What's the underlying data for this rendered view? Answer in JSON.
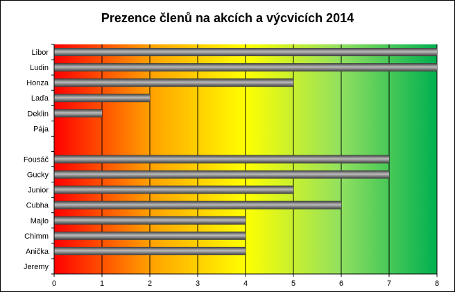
{
  "chart_data": {
    "type": "bar",
    "orientation": "horizontal",
    "title": "Prezence členů na akcích a výcvicích 2014",
    "categories": [
      "Libor",
      "Ludin",
      "Honza",
      "Laďa",
      "Deklin",
      "Pája",
      "",
      "Fousáč",
      "Gucky",
      "Junior",
      "Cubha",
      "Majlo",
      "Chimm",
      "Anička",
      "Jeremy"
    ],
    "values": [
      8,
      8,
      5,
      2,
      1,
      0,
      null,
      7,
      7,
      5,
      6,
      4,
      4,
      4,
      0
    ],
    "xlim": [
      0,
      8
    ],
    "xticks": [
      "0",
      "1",
      "2",
      "3",
      "4",
      "5",
      "6",
      "7",
      "8"
    ],
    "xlabel": "",
    "ylabel": "",
    "grid": "vertical",
    "legend": "none",
    "colors": {
      "background_gradient": [
        "#ff0000",
        "#ffa000",
        "#ffff00",
        "#90e060",
        "#00b050"
      ],
      "bar_dark": "#3a3a3a",
      "bar_light": "#bcbcbc",
      "gridline": "#000000"
    }
  }
}
